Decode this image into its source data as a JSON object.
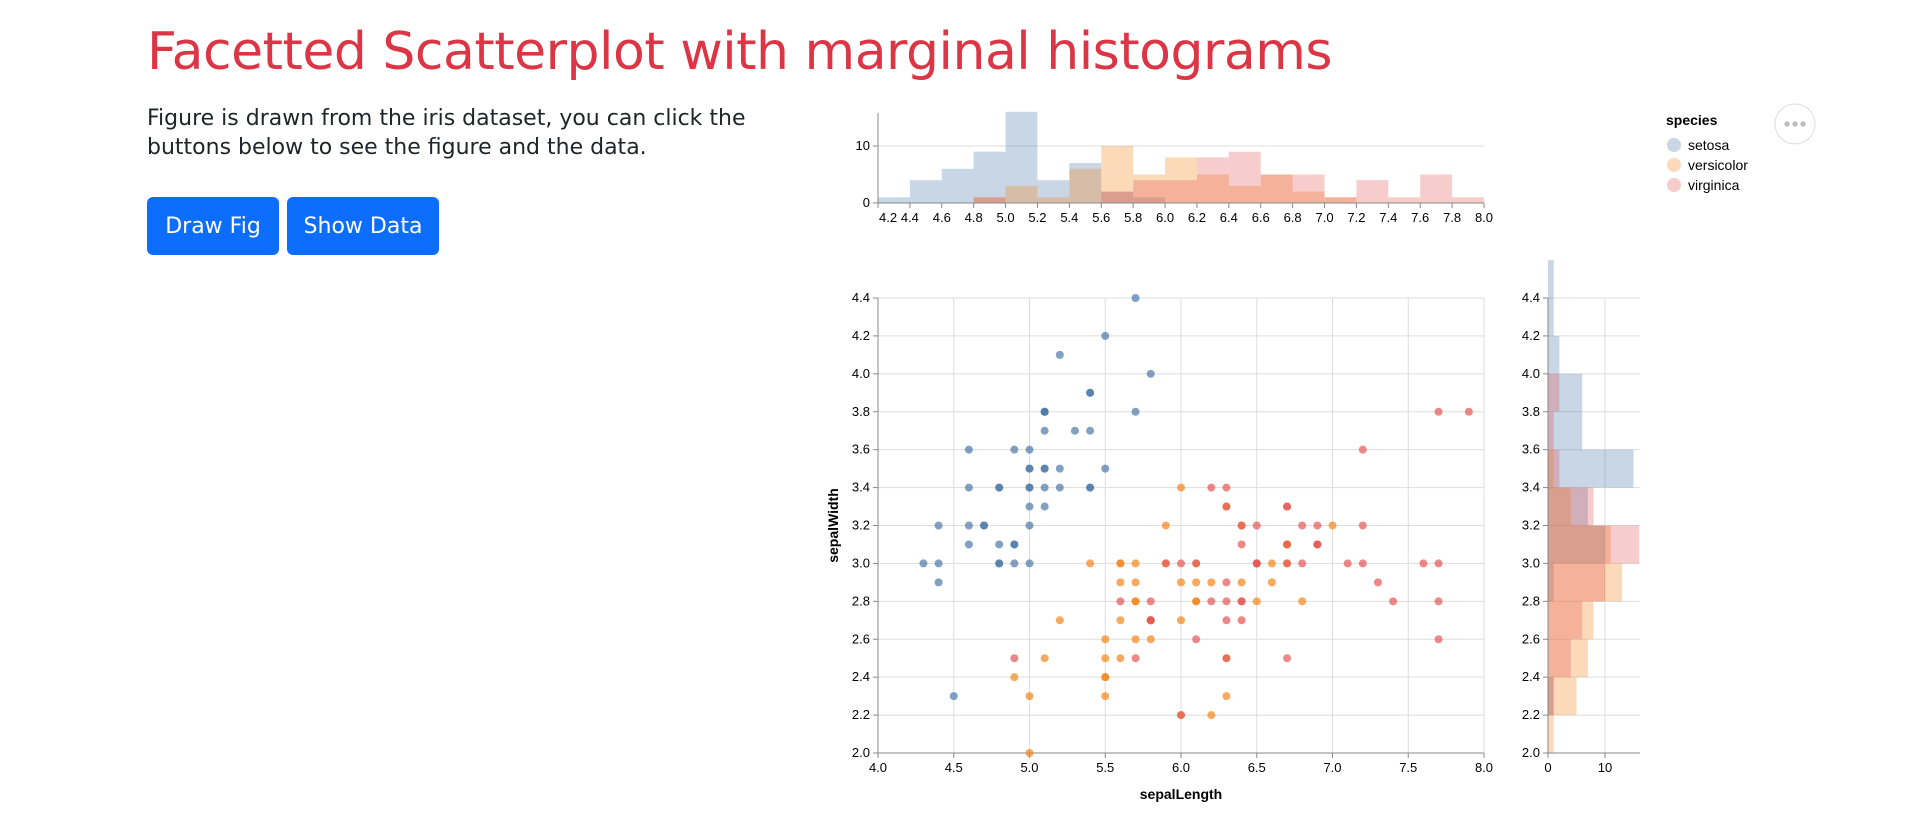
{
  "page": {
    "title": "Facetted Scatterplot with marginal histograms",
    "description": "Figure is drawn from the iris dataset, you can click the buttons below to see the figure and the data.",
    "buttons": {
      "draw": "Draw Fig",
      "show": "Show Data"
    },
    "colors": {
      "title": "#dc3545",
      "button": "#0d6efd"
    }
  },
  "chart_data": {
    "type": "scatter",
    "x_field": "sepalLength",
    "y_field": "sepalWidth",
    "xlabel": "sepalLength",
    "ylabel": "sepalWidth",
    "xlim": [
      4.0,
      8.0
    ],
    "ylim": [
      2.0,
      4.4
    ],
    "x_ticks": [
      4.0,
      4.5,
      5.0,
      5.5,
      6.0,
      6.5,
      7.0,
      7.5,
      8.0
    ],
    "y_ticks": [
      2.0,
      2.2,
      2.4,
      2.6,
      2.8,
      3.0,
      3.2,
      3.4,
      3.6,
      3.8,
      4.0,
      4.2,
      4.4
    ],
    "grid": true,
    "legend": {
      "title": "species",
      "placement": "top-right"
    },
    "series": [
      {
        "name": "setosa",
        "color": "#4c78a8",
        "points": [
          [
            5.1,
            3.5
          ],
          [
            4.9,
            3.0
          ],
          [
            4.7,
            3.2
          ],
          [
            4.6,
            3.1
          ],
          [
            5.0,
            3.6
          ],
          [
            5.4,
            3.9
          ],
          [
            4.6,
            3.4
          ],
          [
            5.0,
            3.4
          ],
          [
            4.4,
            2.9
          ],
          [
            4.9,
            3.1
          ],
          [
            5.4,
            3.7
          ],
          [
            4.8,
            3.4
          ],
          [
            4.8,
            3.0
          ],
          [
            4.3,
            3.0
          ],
          [
            5.8,
            4.0
          ],
          [
            5.7,
            4.4
          ],
          [
            5.4,
            3.9
          ],
          [
            5.1,
            3.5
          ],
          [
            5.7,
            3.8
          ],
          [
            5.1,
            3.8
          ],
          [
            5.4,
            3.4
          ],
          [
            5.1,
            3.7
          ],
          [
            4.6,
            3.6
          ],
          [
            5.1,
            3.3
          ],
          [
            4.8,
            3.4
          ],
          [
            5.0,
            3.0
          ],
          [
            5.0,
            3.4
          ],
          [
            5.2,
            3.5
          ],
          [
            5.2,
            3.4
          ],
          [
            4.7,
            3.2
          ],
          [
            4.8,
            3.1
          ],
          [
            5.4,
            3.4
          ],
          [
            5.2,
            4.1
          ],
          [
            5.5,
            4.2
          ],
          [
            4.9,
            3.1
          ],
          [
            5.0,
            3.2
          ],
          [
            5.5,
            3.5
          ],
          [
            4.9,
            3.6
          ],
          [
            4.4,
            3.0
          ],
          [
            5.1,
            3.4
          ],
          [
            5.0,
            3.5
          ],
          [
            4.5,
            2.3
          ],
          [
            4.4,
            3.2
          ],
          [
            5.0,
            3.5
          ],
          [
            5.1,
            3.8
          ],
          [
            4.8,
            3.0
          ],
          [
            5.1,
            3.8
          ],
          [
            4.6,
            3.2
          ],
          [
            5.3,
            3.7
          ],
          [
            5.0,
            3.3
          ]
        ]
      },
      {
        "name": "versicolor",
        "color": "#f58518",
        "points": [
          [
            7.0,
            3.2
          ],
          [
            6.4,
            3.2
          ],
          [
            6.9,
            3.1
          ],
          [
            5.5,
            2.3
          ],
          [
            6.5,
            2.8
          ],
          [
            5.7,
            2.8
          ],
          [
            6.3,
            3.3
          ],
          [
            4.9,
            2.4
          ],
          [
            6.6,
            2.9
          ],
          [
            5.2,
            2.7
          ],
          [
            5.0,
            2.0
          ],
          [
            5.9,
            3.0
          ],
          [
            6.0,
            2.2
          ],
          [
            6.1,
            2.9
          ],
          [
            5.6,
            2.9
          ],
          [
            6.7,
            3.1
          ],
          [
            5.6,
            3.0
          ],
          [
            5.8,
            2.7
          ],
          [
            6.2,
            2.2
          ],
          [
            5.6,
            2.5
          ],
          [
            5.9,
            3.2
          ],
          [
            6.1,
            2.8
          ],
          [
            6.3,
            2.5
          ],
          [
            6.1,
            2.8
          ],
          [
            6.4,
            2.9
          ],
          [
            6.6,
            3.0
          ],
          [
            6.8,
            2.8
          ],
          [
            6.7,
            3.0
          ],
          [
            6.0,
            2.9
          ],
          [
            5.7,
            2.6
          ],
          [
            5.5,
            2.4
          ],
          [
            5.5,
            2.4
          ],
          [
            5.8,
            2.7
          ],
          [
            6.0,
            2.7
          ],
          [
            5.4,
            3.0
          ],
          [
            6.0,
            3.4
          ],
          [
            6.7,
            3.1
          ],
          [
            6.3,
            2.3
          ],
          [
            5.6,
            3.0
          ],
          [
            5.5,
            2.5
          ],
          [
            5.5,
            2.6
          ],
          [
            6.1,
            3.0
          ],
          [
            5.8,
            2.6
          ],
          [
            5.0,
            2.3
          ],
          [
            5.6,
            2.7
          ],
          [
            5.7,
            3.0
          ],
          [
            5.7,
            2.9
          ],
          [
            6.2,
            2.9
          ],
          [
            5.1,
            2.5
          ],
          [
            5.7,
            2.8
          ]
        ]
      },
      {
        "name": "virginica",
        "color": "#e45756",
        "points": [
          [
            6.3,
            3.3
          ],
          [
            5.8,
            2.7
          ],
          [
            7.1,
            3.0
          ],
          [
            6.3,
            2.9
          ],
          [
            6.5,
            3.0
          ],
          [
            7.6,
            3.0
          ],
          [
            4.9,
            2.5
          ],
          [
            7.3,
            2.9
          ],
          [
            6.7,
            2.5
          ],
          [
            7.2,
            3.6
          ],
          [
            6.5,
            3.2
          ],
          [
            6.4,
            2.7
          ],
          [
            6.8,
            3.0
          ],
          [
            5.7,
            2.5
          ],
          [
            5.8,
            2.8
          ],
          [
            6.4,
            3.2
          ],
          [
            6.5,
            3.0
          ],
          [
            7.7,
            3.8
          ],
          [
            7.7,
            2.6
          ],
          [
            6.0,
            2.2
          ],
          [
            6.9,
            3.2
          ],
          [
            5.6,
            2.8
          ],
          [
            7.7,
            2.8
          ],
          [
            6.3,
            2.7
          ],
          [
            6.7,
            3.3
          ],
          [
            7.2,
            3.2
          ],
          [
            6.2,
            2.8
          ],
          [
            6.1,
            3.0
          ],
          [
            6.4,
            2.8
          ],
          [
            7.2,
            3.0
          ],
          [
            7.4,
            2.8
          ],
          [
            7.9,
            3.8
          ],
          [
            6.4,
            2.8
          ],
          [
            6.3,
            2.8
          ],
          [
            6.1,
            2.6
          ],
          [
            7.7,
            3.0
          ],
          [
            6.3,
            3.4
          ],
          [
            6.4,
            3.1
          ],
          [
            6.0,
            3.0
          ],
          [
            6.9,
            3.1
          ],
          [
            6.7,
            3.1
          ],
          [
            6.9,
            3.1
          ],
          [
            5.8,
            2.7
          ],
          [
            6.8,
            3.2
          ],
          [
            6.7,
            3.3
          ],
          [
            6.7,
            3.0
          ],
          [
            6.3,
            2.5
          ],
          [
            6.5,
            3.0
          ],
          [
            6.2,
            3.4
          ],
          [
            5.9,
            3.0
          ]
        ]
      }
    ],
    "top_histogram": {
      "field": "sepalLength",
      "bin_step": 0.2,
      "y_ticks": [
        0,
        10
      ],
      "x_tick_labels": [
        "4.2",
        "4.4",
        "4.6",
        "4.8",
        "5.0",
        "5.2",
        "5.4",
        "5.6",
        "5.8",
        "6.0",
        "6.2",
        "6.4",
        "6.6",
        "6.8",
        "7.0",
        "7.2",
        "7.4",
        "7.6",
        "7.8",
        "8.0"
      ]
    },
    "right_histogram": {
      "field": "sepalWidth",
      "bin_step": 0.2,
      "x_ticks": [
        0,
        10
      ]
    }
  }
}
